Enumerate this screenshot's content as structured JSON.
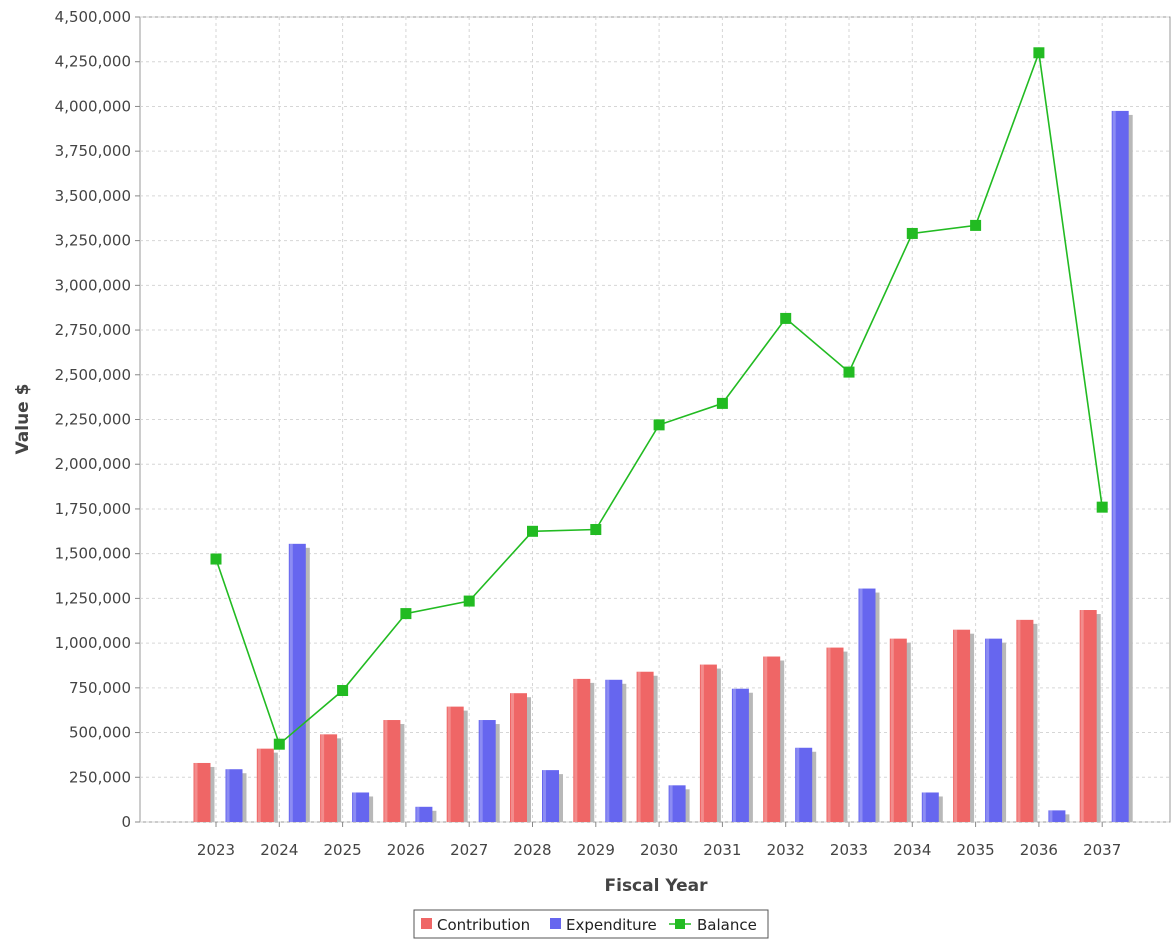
{
  "chart_data": {
    "type": "bar",
    "xlabel": "Fiscal Year",
    "ylabel": "Value $",
    "ylim": [
      0,
      4500000
    ],
    "yticks": [
      0,
      250000,
      500000,
      750000,
      1000000,
      1250000,
      1500000,
      1750000,
      2000000,
      2250000,
      2500000,
      2750000,
      3000000,
      3250000,
      3500000,
      3750000,
      4000000,
      4250000,
      4500000
    ],
    "ytick_labels": [
      "0",
      "250,000",
      "500,000",
      "750,000",
      "1,000,000",
      "1,250,000",
      "1,500,000",
      "1,750,000",
      "2,000,000",
      "2,250,000",
      "2,500,000",
      "2,750,000",
      "3,000,000",
      "3,250,000",
      "3,500,000",
      "3,750,000",
      "4,000,000",
      "4,250,000",
      "4,500,000"
    ],
    "categories": [
      "2023",
      "2024",
      "2025",
      "2026",
      "2027",
      "2028",
      "2029",
      "2030",
      "2031",
      "2032",
      "2033",
      "2034",
      "2035",
      "2036",
      "2037"
    ],
    "grid": true,
    "legend_position": "bottom",
    "series": [
      {
        "name": "Contribution",
        "type": "bar",
        "color": "#ef6666",
        "values": [
          330000,
          410000,
          490000,
          570000,
          645000,
          720000,
          800000,
          840000,
          880000,
          925000,
          975000,
          1025000,
          1075000,
          1130000,
          1185000
        ]
      },
      {
        "name": "Expenditure",
        "type": "bar",
        "color": "#6666ef",
        "values": [
          295000,
          1555000,
          165000,
          85000,
          570000,
          290000,
          795000,
          205000,
          745000,
          415000,
          1305000,
          165000,
          1025000,
          65000,
          3975000
        ]
      },
      {
        "name": "Balance",
        "type": "line",
        "color": "#22bb22",
        "values": [
          1470000,
          435000,
          735000,
          1165000,
          1235000,
          1625000,
          1635000,
          2220000,
          2340000,
          2815000,
          2515000,
          3290000,
          3335000,
          4300000,
          1760000
        ]
      }
    ]
  }
}
